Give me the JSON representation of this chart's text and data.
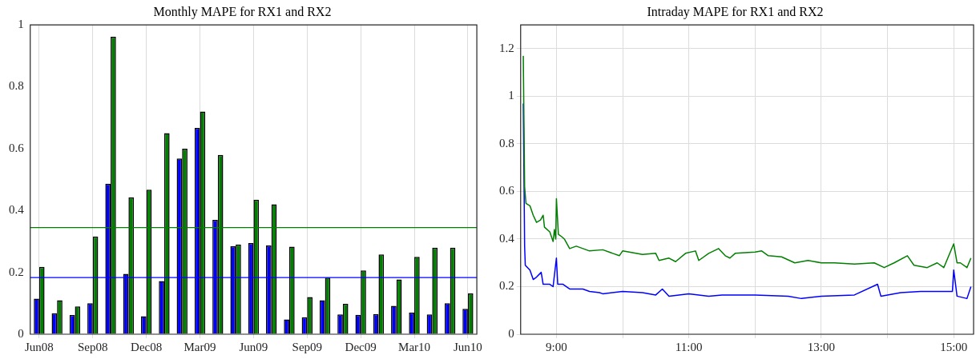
{
  "chart_data": [
    {
      "type": "bar",
      "title": "Monthly MAPE for RX1 and RX2",
      "categories": [
        "Jun08",
        null,
        null,
        "Sep08",
        null,
        null,
        "Dec08",
        null,
        null,
        "Mar09",
        null,
        null,
        "Jun09",
        null,
        null,
        "Sep09",
        null,
        null,
        "Dec09",
        null,
        null,
        "Mar10",
        null,
        null,
        "Jun10"
      ],
      "series": [
        {
          "color": "#0000ff",
          "values": [
            0.115,
            0.068,
            0.062,
            0.1,
            0.487,
            0.195,
            0.058,
            0.172,
            0.568,
            0.667,
            0.37,
            0.285,
            0.295,
            0.287,
            0.048,
            0.055,
            0.11,
            0.064,
            0.063,
            0.065,
            0.092,
            0.07,
            0.064,
            0.1,
            0.082
          ]
        },
        {
          "color": "#007f00",
          "values": [
            0.218,
            0.11,
            0.09,
            0.316,
            0.962,
            0.443,
            0.467,
            0.65,
            0.6,
            0.72,
            0.58,
            0.29,
            0.435,
            0.42,
            0.283,
            0.12,
            0.183,
            0.098,
            0.206,
            0.258,
            0.177,
            0.25,
            0.28,
            0.28,
            0.132
          ]
        }
      ],
      "ylim": [
        0,
        1
      ],
      "yticks": [
        0,
        0.2,
        0.4,
        0.6,
        0.8,
        1
      ],
      "grid": "x",
      "ref_lines": [
        {
          "axis": "y",
          "value": 0.345,
          "color": "#007f00"
        },
        {
          "axis": "y",
          "value": 0.183,
          "color": "#0000ff"
        }
      ]
    },
    {
      "type": "line",
      "title": "Intraday MAPE for RX1 and RX2",
      "series": [
        {
          "color": "#007f00",
          "x": [
            8.5,
            8.52,
            8.54,
            8.6,
            8.65,
            8.7,
            8.76,
            8.8,
            8.82,
            8.9,
            8.95,
            8.97,
            8.99,
            9.0,
            9.03,
            9.08,
            9.12,
            9.2,
            9.3,
            9.4,
            9.5,
            9.7,
            9.85,
            9.95,
            10.0,
            10.3,
            10.5,
            10.55,
            10.7,
            10.8,
            10.95,
            11.1,
            11.15,
            11.3,
            11.45,
            11.55,
            11.62,
            11.7,
            12.0,
            12.1,
            12.2,
            12.4,
            12.6,
            12.8,
            13.0,
            13.2,
            13.5,
            13.8,
            13.95,
            14.1,
            14.3,
            14.4,
            14.6,
            14.75,
            14.85,
            15.0,
            15.05,
            15.1,
            15.2,
            15.26
          ],
          "values": [
            1.17,
            0.62,
            0.55,
            0.54,
            0.5,
            0.47,
            0.48,
            0.5,
            0.45,
            0.43,
            0.39,
            0.44,
            0.4,
            0.57,
            0.42,
            0.41,
            0.4,
            0.36,
            0.37,
            0.36,
            0.35,
            0.355,
            0.34,
            0.33,
            0.35,
            0.335,
            0.34,
            0.31,
            0.32,
            0.305,
            0.34,
            0.35,
            0.31,
            0.34,
            0.36,
            0.33,
            0.32,
            0.34,
            0.345,
            0.35,
            0.33,
            0.325,
            0.3,
            0.31,
            0.3,
            0.3,
            0.295,
            0.3,
            0.28,
            0.3,
            0.33,
            0.29,
            0.28,
            0.3,
            0.28,
            0.38,
            0.3,
            0.3,
            0.28,
            0.32
          ]
        },
        {
          "color": "#0000ff",
          "x": [
            8.5,
            8.52,
            8.53,
            8.6,
            8.65,
            8.7,
            8.77,
            8.8,
            8.9,
            8.95,
            9.0,
            9.02,
            9.1,
            9.2,
            9.4,
            9.5,
            9.65,
            9.7,
            10.0,
            10.3,
            10.5,
            10.6,
            10.7,
            11.0,
            11.3,
            11.5,
            12.0,
            12.5,
            12.7,
            13.0,
            13.5,
            13.85,
            13.9,
            14.2,
            14.5,
            14.8,
            14.98,
            15.0,
            15.05,
            15.2,
            15.26
          ],
          "values": [
            0.97,
            0.37,
            0.29,
            0.27,
            0.23,
            0.24,
            0.26,
            0.21,
            0.21,
            0.2,
            0.32,
            0.21,
            0.21,
            0.19,
            0.19,
            0.18,
            0.175,
            0.17,
            0.18,
            0.175,
            0.165,
            0.19,
            0.16,
            0.17,
            0.16,
            0.165,
            0.165,
            0.16,
            0.15,
            0.16,
            0.165,
            0.21,
            0.16,
            0.175,
            0.18,
            0.18,
            0.18,
            0.27,
            0.16,
            0.15,
            0.2
          ]
        }
      ],
      "xlim": [
        8.46,
        15.3
      ],
      "xticks": [
        {
          "value": 9,
          "label": "9:00"
        },
        {
          "value": 10,
          "label": null
        },
        {
          "value": 11,
          "label": "11:00"
        },
        {
          "value": 12,
          "label": null
        },
        {
          "value": 13,
          "label": "13:00"
        },
        {
          "value": 14,
          "label": null
        },
        {
          "value": 15,
          "label": "15:00"
        }
      ],
      "ylim": [
        0,
        1.3
      ],
      "yticks": [
        0,
        0.2,
        0.4,
        0.6,
        0.8,
        1,
        1.2
      ],
      "grid": true
    }
  ]
}
